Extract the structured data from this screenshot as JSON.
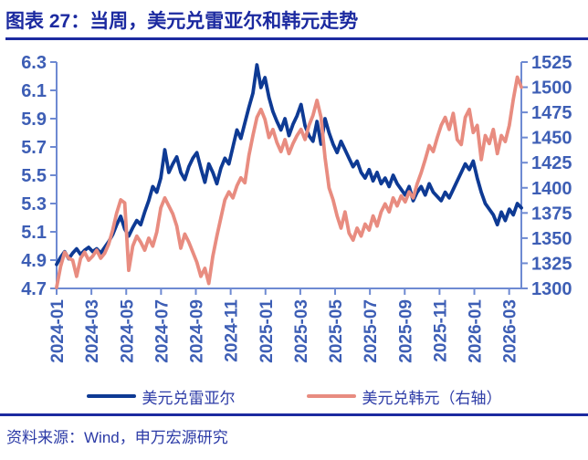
{
  "header": {
    "title": "图表 27：当周，美元兑雷亚尔和韩元走势"
  },
  "footer": {
    "source": "资料来源：Wind，申万宏源研究"
  },
  "colors": {
    "navy_accent": "#1c2aa0",
    "tick_label_blue": "#3d5eb5",
    "axis_line_blue": "#6e8ad2",
    "legend_text_blue": "#2b3aa6",
    "series_brl": "#0e3a94",
    "series_krw": "#e88c80"
  },
  "chart_data": {
    "type": "line",
    "title": "当周，美元兑雷亚尔和韩元走势",
    "x_unit": "week (2024-01 through 2026-03)",
    "x_tick_labels": [
      "2024-01",
      "2024-03",
      "2024-05",
      "2024-07",
      "2024-09",
      "2024-11",
      "2025-01",
      "2025-03",
      "2025-05",
      "2025-07",
      "2025-09",
      "2025-11",
      "2026-01",
      "2026-03"
    ],
    "left_axis": {
      "min": 4.7,
      "max": 6.3,
      "ticks": [
        6.3,
        6.1,
        5.9,
        5.7,
        5.5,
        5.3,
        5.1,
        4.9,
        4.7
      ]
    },
    "right_axis": {
      "min": 1300,
      "max": 1525,
      "ticks": [
        1525,
        1500,
        1475,
        1450,
        1425,
        1400,
        1375,
        1350,
        1325,
        1300
      ]
    },
    "grid": false,
    "legend_position": "bottom",
    "series": [
      {
        "name": "美元兑雷亚尔",
        "axis": "left",
        "color": "#0e3a94",
        "values": [
          4.87,
          4.92,
          4.96,
          4.91,
          4.95,
          4.98,
          4.94,
          4.97,
          4.99,
          4.96,
          4.98,
          4.95,
          4.99,
          5.03,
          5.08,
          5.15,
          5.21,
          5.12,
          5.07,
          5.13,
          5.18,
          5.15,
          5.24,
          5.32,
          5.42,
          5.38,
          5.48,
          5.68,
          5.52,
          5.58,
          5.63,
          5.52,
          5.47,
          5.56,
          5.62,
          5.66,
          5.55,
          5.45,
          5.58,
          5.52,
          5.44,
          5.55,
          5.62,
          5.58,
          5.7,
          5.82,
          5.76,
          5.87,
          5.98,
          6.08,
          6.28,
          6.12,
          6.19,
          6.05,
          5.95,
          5.88,
          5.82,
          5.9,
          5.78,
          5.86,
          5.92,
          6.0,
          5.85,
          5.78,
          5.74,
          5.88,
          5.72,
          5.9,
          5.8,
          5.72,
          5.66,
          5.74,
          5.68,
          5.62,
          5.56,
          5.6,
          5.52,
          5.48,
          5.54,
          5.46,
          5.52,
          5.44,
          5.48,
          5.42,
          5.5,
          5.44,
          5.4,
          5.36,
          5.42,
          5.32,
          5.38,
          5.42,
          5.36,
          5.44,
          5.38,
          5.35,
          5.32,
          5.38,
          5.34,
          5.4,
          5.46,
          5.52,
          5.58,
          5.54,
          5.6,
          5.48,
          5.38,
          5.3,
          5.26,
          5.22,
          5.15,
          5.24,
          5.18,
          5.26,
          5.22,
          5.3,
          5.27
        ]
      },
      {
        "name": "美元兑韩元（右轴）",
        "axis": "right",
        "color": "#e88c80",
        "values": [
          1301,
          1322,
          1336,
          1330,
          1328,
          1312,
          1330,
          1336,
          1328,
          1332,
          1338,
          1330,
          1335,
          1344,
          1358,
          1375,
          1388,
          1385,
          1318,
          1342,
          1352,
          1346,
          1338,
          1350,
          1342,
          1356,
          1380,
          1390,
          1382,
          1374,
          1362,
          1340,
          1354,
          1346,
          1336,
          1326,
          1312,
          1320,
          1305,
          1332,
          1352,
          1370,
          1388,
          1396,
          1390,
          1402,
          1410,
          1405,
          1432,
          1452,
          1470,
          1478,
          1468,
          1450,
          1458,
          1445,
          1436,
          1448,
          1434,
          1444,
          1452,
          1458,
          1448,
          1462,
          1472,
          1487,
          1470,
          1430,
          1400,
          1388,
          1372,
          1360,
          1376,
          1355,
          1348,
          1360,
          1352,
          1364,
          1358,
          1372,
          1362,
          1376,
          1384,
          1376,
          1390,
          1382,
          1392,
          1386,
          1396,
          1390,
          1404,
          1415,
          1428,
          1442,
          1436,
          1450,
          1462,
          1470,
          1458,
          1474,
          1448,
          1443,
          1470,
          1478,
          1455,
          1462,
          1428,
          1452,
          1444,
          1458,
          1434,
          1452,
          1446,
          1462,
          1488,
          1510,
          1500
        ]
      }
    ]
  },
  "legend": {
    "items": [
      {
        "label": "美元兑雷亚尔"
      },
      {
        "label": "美元兑韩元（右轴）"
      }
    ]
  }
}
